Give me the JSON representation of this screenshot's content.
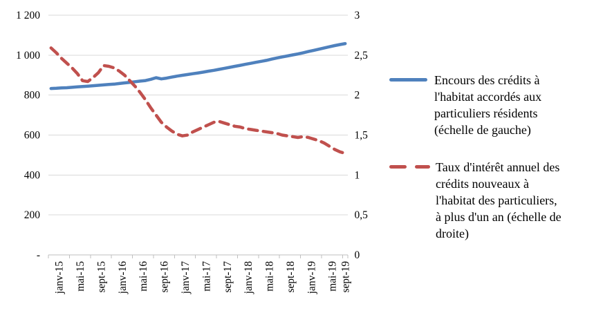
{
  "figure": {
    "background": "#ffffff"
  },
  "chart_data": {
    "type": "line",
    "title": "",
    "x_axis": {
      "tick_labels": [
        "janv-15",
        "mai-15",
        "sept-15",
        "janv-16",
        "mai-16",
        "sept-16",
        "janv-17",
        "mai-17",
        "sept-17",
        "janv-18",
        "mai-18",
        "sept-18",
        "janv-19",
        "mai-19",
        "sept-19"
      ],
      "months_between_labels": 4,
      "n_points": 57
    },
    "left_axis": {
      "min": 0,
      "max": 1200,
      "step": 200,
      "tick_labels": [
        "1 200",
        "1 000",
        "800",
        "600",
        "400",
        "200",
        "-"
      ]
    },
    "right_axis": {
      "min": 0,
      "max": 3,
      "step": 0.5,
      "tick_labels": [
        "3",
        "2,5",
        "2",
        "1,5",
        "1",
        "0,5",
        "0"
      ]
    },
    "grid": true,
    "legend_position": "right",
    "colors": {
      "gridline": "#d9d9d9",
      "axis": "#bfbfbf",
      "text": "#000000"
    },
    "series": [
      {
        "name": "Encours des crédits à l'habitat accordés aux particuliers résidents (échelle de gauche)",
        "axis": "left",
        "color": "#4F81BD",
        "line_style": "solid",
        "values": [
          833,
          834,
          836,
          837,
          839,
          841,
          843,
          845,
          847,
          849,
          851,
          853,
          855,
          858,
          861,
          864,
          867,
          870,
          873,
          879,
          887,
          881,
          885,
          890,
          895,
          899,
          903,
          907,
          911,
          915,
          920,
          924,
          929,
          934,
          939,
          944,
          949,
          954,
          959,
          964,
          969,
          974,
          980,
          986,
          991,
          996,
          1001,
          1006,
          1012,
          1018,
          1024,
          1030,
          1036,
          1042,
          1048,
          1053,
          1058
        ]
      },
      {
        "name": "Taux d'intérêt annuel des crédits nouveaux à l'habitat des particuliers, à plus d'un an (échelle de droite)",
        "axis": "right",
        "color": "#C0504D",
        "line_style": "dashed",
        "values": [
          2.59,
          2.53,
          2.46,
          2.4,
          2.34,
          2.27,
          2.18,
          2.17,
          2.22,
          2.28,
          2.37,
          2.36,
          2.34,
          2.3,
          2.25,
          2.18,
          2.11,
          2.03,
          1.94,
          1.84,
          1.75,
          1.66,
          1.6,
          1.55,
          1.51,
          1.49,
          1.5,
          1.54,
          1.57,
          1.6,
          1.63,
          1.66,
          1.67,
          1.65,
          1.63,
          1.61,
          1.6,
          1.58,
          1.57,
          1.56,
          1.55,
          1.54,
          1.53,
          1.52,
          1.5,
          1.49,
          1.48,
          1.47,
          1.48,
          1.47,
          1.45,
          1.43,
          1.4,
          1.36,
          1.32,
          1.29,
          1.27
        ]
      }
    ]
  },
  "legend": {
    "entries": [
      {
        "label": "Encours des crédits à l'habitat accordés aux particuliers résidents (échelle de gauche)",
        "color": "#4F81BD",
        "style": "solid"
      },
      {
        "label": "Taux d'intérêt annuel des crédits nouveaux à l'habitat des particuliers, à plus d'un an (échelle de droite)",
        "color": "#C0504D",
        "style": "dashed"
      }
    ]
  }
}
